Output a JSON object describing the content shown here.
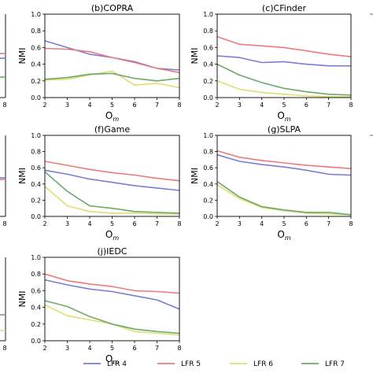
{
  "chart_data": {
    "type": "line",
    "x": [
      2,
      3,
      4,
      5,
      6,
      7,
      8
    ],
    "xlim": [
      2,
      8
    ],
    "ylim": [
      0,
      1.0
    ],
    "xticks": [
      "2",
      "3",
      "4",
      "5",
      "6",
      "7",
      "8"
    ],
    "yticks": [
      "0.0",
      "0.2",
      "0.4",
      "0.6",
      "0.8",
      "1.0"
    ],
    "xlabel": "Om",
    "ylabel": "NMI",
    "grid": false,
    "legend_position": "bottom",
    "series_names": [
      "LFR 4",
      "LFR 5",
      "LFR 6",
      "LFR 7"
    ],
    "series_colors": [
      "#7b7bd8",
      "#ee7b7b",
      "#dede74",
      "#6aaa6a"
    ],
    "panels": [
      {
        "title": "(b)COPRA",
        "series": [
          {
            "name": "LFR 4",
            "values": [
              0.68,
              0.6,
              0.52,
              0.48,
              0.43,
              0.35,
              0.33
            ]
          },
          {
            "name": "LFR 5",
            "values": [
              0.59,
              0.58,
              0.55,
              0.48,
              0.42,
              0.35,
              0.3
            ]
          },
          {
            "name": "LFR 6",
            "values": [
              0.21,
              0.22,
              0.27,
              0.32,
              0.15,
              0.17,
              0.12
            ]
          },
          {
            "name": "LFR 7",
            "values": [
              0.22,
              0.24,
              0.28,
              0.29,
              0.23,
              0.2,
              0.23
            ]
          }
        ]
      },
      {
        "title": "(c)CFinder",
        "series": [
          {
            "name": "LFR 4",
            "values": [
              0.5,
              0.48,
              0.42,
              0.43,
              0.4,
              0.38,
              0.38
            ]
          },
          {
            "name": "LFR 5",
            "values": [
              0.73,
              0.64,
              0.62,
              0.6,
              0.56,
              0.52,
              0.49
            ]
          },
          {
            "name": "LFR 6",
            "values": [
              0.2,
              0.1,
              0.06,
              0.04,
              0.02,
              0.01,
              0.01
            ]
          },
          {
            "name": "LFR 7",
            "values": [
              0.4,
              0.27,
              0.18,
              0.11,
              0.07,
              0.04,
              0.03
            ]
          }
        ]
      },
      {
        "title": "(f)Game",
        "series": [
          {
            "name": "LFR 4",
            "values": [
              0.57,
              0.52,
              0.46,
              0.42,
              0.38,
              0.35,
              0.32
            ]
          },
          {
            "name": "LFR 5",
            "values": [
              0.68,
              0.63,
              0.58,
              0.54,
              0.51,
              0.47,
              0.44
            ]
          },
          {
            "name": "LFR 6",
            "values": [
              0.37,
              0.13,
              0.06,
              0.04,
              0.04,
              0.03,
              0.03
            ]
          },
          {
            "name": "LFR 7",
            "values": [
              0.55,
              0.31,
              0.13,
              0.1,
              0.06,
              0.05,
              0.04
            ]
          }
        ]
      },
      {
        "title": "(g)SLPA",
        "series": [
          {
            "name": "LFR 4",
            "values": [
              0.76,
              0.68,
              0.64,
              0.61,
              0.57,
              0.52,
              0.51
            ]
          },
          {
            "name": "LFR 5",
            "values": [
              0.81,
              0.73,
              0.69,
              0.66,
              0.63,
              0.61,
              0.59
            ]
          },
          {
            "name": "LFR 6",
            "values": [
              0.39,
              0.22,
              0.11,
              0.07,
              0.04,
              0.03,
              0.02
            ]
          },
          {
            "name": "LFR 7",
            "values": [
              0.43,
              0.24,
              0.12,
              0.08,
              0.05,
              0.05,
              0.02
            ]
          }
        ]
      },
      {
        "title": "(j)IEDC",
        "series": [
          {
            "name": "LFR 4",
            "values": [
              0.73,
              0.67,
              0.62,
              0.59,
              0.54,
              0.49,
              0.38
            ]
          },
          {
            "name": "LFR 5",
            "values": [
              0.8,
              0.72,
              0.68,
              0.65,
              0.6,
              0.59,
              0.57
            ]
          },
          {
            "name": "LFR 6",
            "values": [
              0.43,
              0.3,
              0.25,
              0.2,
              0.11,
              0.09,
              0.07
            ]
          },
          {
            "name": "LFR 7",
            "values": [
              0.48,
              0.41,
              0.29,
              0.2,
              0.14,
              0.11,
              0.09
            ]
          }
        ]
      }
    ],
    "edge_panel_partial_ticks": [
      "8",
      "8",
      "8"
    ]
  }
}
